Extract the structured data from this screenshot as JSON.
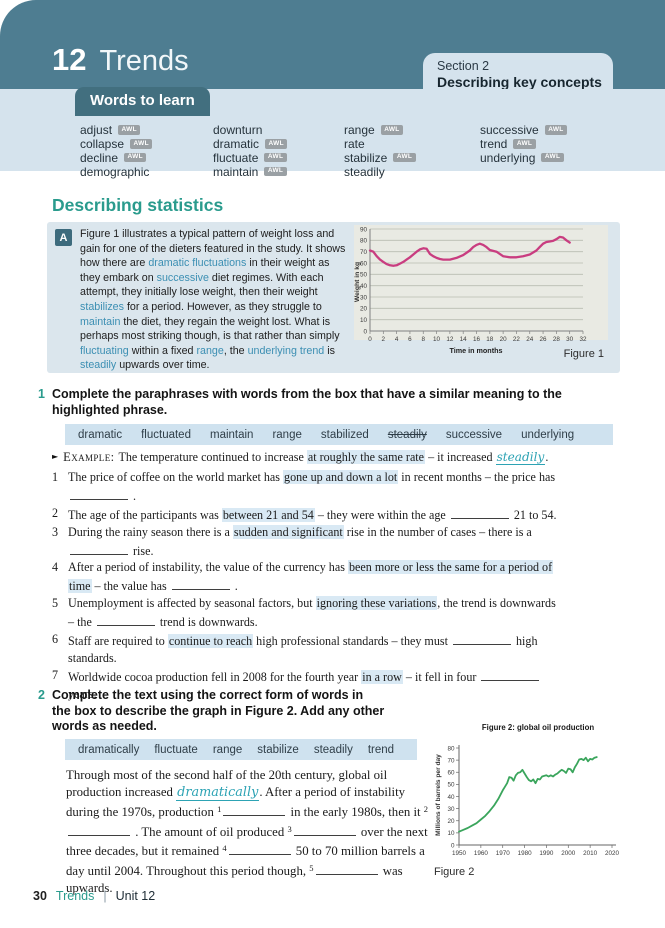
{
  "header": {
    "unit_number": "12",
    "unit_title": "Trends",
    "section_label": "Section 2",
    "section_title": "Describing key concepts"
  },
  "words_to_learn": {
    "title": "Words to learn",
    "awl_badge_text": "AWL",
    "columns": [
      [
        {
          "word": "adjust",
          "awl": true
        },
        {
          "word": "collapse",
          "awl": true
        },
        {
          "word": "decline",
          "awl": true
        },
        {
          "word": "demographic",
          "awl": false
        }
      ],
      [
        {
          "word": "downturn",
          "awl": false
        },
        {
          "word": "dramatic",
          "awl": true
        },
        {
          "word": "fluctuate",
          "awl": true
        },
        {
          "word": "maintain",
          "awl": true
        }
      ],
      [
        {
          "word": "range",
          "awl": true
        },
        {
          "word": "rate",
          "awl": false
        },
        {
          "word": "stabilize",
          "awl": true
        },
        {
          "word": "steadily",
          "awl": false
        }
      ],
      [
        {
          "word": "successive",
          "awl": true
        },
        {
          "word": "trend",
          "awl": true
        },
        {
          "word": "underlying",
          "awl": true
        }
      ]
    ]
  },
  "section_heading": "Describing statistics",
  "box_a": {
    "label": "A",
    "paragraph": [
      {
        "t": "Figure 1 illustrates a typical pattern of weight loss and gain for one of the dieters featured in the study. It shows how there are "
      },
      {
        "k": "dramatic fluctuations"
      },
      {
        "t": " in their weight as they embark on "
      },
      {
        "k": "successive"
      },
      {
        "t": " diet regimes. With each attempt, they initially lose weight, then their weight "
      },
      {
        "k": "stabilizes"
      },
      {
        "t": " for a period. However, as they struggle to "
      },
      {
        "k": "maintain"
      },
      {
        "t": " the diet, they regain the weight lost. What is perhaps most striking though, is that rather than simply "
      },
      {
        "k": "fluctuating"
      },
      {
        "t": " within a fixed "
      },
      {
        "k": "range"
      },
      {
        "t": ", the "
      },
      {
        "k": "underlying trend"
      },
      {
        "t": " is "
      },
      {
        "k": "steadily"
      },
      {
        "t": " upwards over time."
      }
    ]
  },
  "exercise1": {
    "number": "1",
    "heading_lines": [
      "Complete the paraphrases with words from the box that have a similar meaning to the",
      "highlighted phrase."
    ],
    "word_box": [
      {
        "word": "dramatic"
      },
      {
        "word": "fluctuated"
      },
      {
        "word": "maintain"
      },
      {
        "word": "range"
      },
      {
        "word": "stabilized"
      },
      {
        "word": "steadily",
        "struck": true
      },
      {
        "word": "successive"
      },
      {
        "word": "underlying"
      }
    ],
    "example": {
      "marker": "►",
      "label": "Example:",
      "segments": [
        {
          "t": "The temperature continued to increase "
        },
        {
          "h": "at roughly the same rate"
        },
        {
          "t": " – it increased "
        },
        {
          "hw": "steadily"
        },
        {
          "t": "."
        }
      ]
    },
    "items": [
      {
        "num": "1",
        "segments": [
          {
            "t": "The price of coffee on the world market has "
          },
          {
            "h": "gone up and down a lot"
          },
          {
            "t": " in recent months – the price has"
          },
          {
            "br": true
          },
          {
            "b": 58
          },
          {
            "t": " ."
          }
        ]
      },
      {
        "num": "2",
        "segments": [
          {
            "t": "The age of the participants was "
          },
          {
            "h": "between 21 and 54"
          },
          {
            "t": " – they were within the age "
          },
          {
            "b": 58
          },
          {
            "t": " 21 to 54."
          }
        ]
      },
      {
        "num": "3",
        "segments": [
          {
            "t": "During the rainy season there is a "
          },
          {
            "h": "sudden and significant"
          },
          {
            "t": " rise in the number of cases – there is a"
          },
          {
            "br": true
          },
          {
            "b": 58
          },
          {
            "t": " rise."
          }
        ]
      },
      {
        "num": "4",
        "segments": [
          {
            "t": "After a period of instability, the value of the currency has "
          },
          {
            "h": "been more or less the same for a period of"
          },
          {
            "br": true
          },
          {
            "h": "time"
          },
          {
            "t": " – the value has "
          },
          {
            "b": 58
          },
          {
            "t": " ."
          }
        ]
      },
      {
        "num": "5",
        "segments": [
          {
            "t": "Unemployment is affected by seasonal factors, but "
          },
          {
            "h": "ignoring these variations"
          },
          {
            "t": ", the trend is downwards"
          },
          {
            "br": true
          },
          {
            "t": "– the "
          },
          {
            "b": 58
          },
          {
            "t": " trend is downwards."
          }
        ]
      },
      {
        "num": "6",
        "segments": [
          {
            "t": "Staff are required to "
          },
          {
            "h": "continue to reach"
          },
          {
            "t": " high professional standards – they must "
          },
          {
            "b": 58
          },
          {
            "t": " high"
          },
          {
            "br": true
          },
          {
            "t": "standards."
          }
        ]
      },
      {
        "num": "7",
        "segments": [
          {
            "t": "Worldwide cocoa production fell in 2008 for the fourth year "
          },
          {
            "h": "in a row"
          },
          {
            "t": " – it fell in four "
          },
          {
            "b": 58
          },
          {
            "br": true
          },
          {
            "t": "years."
          }
        ]
      }
    ]
  },
  "exercise2": {
    "number": "2",
    "heading_lines": [
      "Complete the text using the correct form of words in",
      "the box to describe the graph in Figure 2. Add any other",
      "words as needed."
    ],
    "word_box": [
      {
        "word": "dramatically"
      },
      {
        "word": "fluctuate"
      },
      {
        "word": "range"
      },
      {
        "word": "stabilize"
      },
      {
        "word": "steadily"
      },
      {
        "word": "trend"
      }
    ],
    "paragraph": [
      {
        "t": "Through most of the second half of the 20th century, global oil production increased "
      },
      {
        "hw": "dramatically"
      },
      {
        "t": ". After a period of instability during the 1970s, production "
      },
      {
        "s": "1"
      },
      {
        "b": 62
      },
      {
        "t": " in the early 1980s, then it "
      },
      {
        "s": "2"
      },
      {
        "b": 62
      },
      {
        "t": " . The amount of oil produced "
      },
      {
        "s": "3"
      },
      {
        "b": 62
      },
      {
        "t": " over the next three decades, but it remained "
      },
      {
        "s": "4"
      },
      {
        "b": 62
      },
      {
        "t": " 50 to 70 million barrels a day until 2004. Throughout this period though, "
      },
      {
        "s": "5"
      },
      {
        "b": 62
      },
      {
        "t": " was upwards."
      }
    ]
  },
  "chart_data": [
    {
      "type": "line",
      "title": "",
      "figure_label": "Figure 1",
      "xlabel": "Time in months",
      "ylabel": "Weight in kg",
      "xlim": [
        0,
        32
      ],
      "ylim": [
        0,
        90
      ],
      "xtick_step": 2,
      "ytick_step": 10,
      "grid": "horizontal",
      "line_color": "#c93d80",
      "series": [
        {
          "name": "dieter weight (kg)",
          "points": [
            [
              0,
              71
            ],
            [
              0.5,
              70
            ],
            [
              1,
              66
            ],
            [
              1.5,
              63
            ],
            [
              2,
              61
            ],
            [
              2.5,
              59
            ],
            [
              3,
              58
            ],
            [
              3.5,
              57.5
            ],
            [
              4,
              58
            ],
            [
              4.5,
              59.5
            ],
            [
              5,
              61
            ],
            [
              5.5,
              63
            ],
            [
              6,
              65
            ],
            [
              6.5,
              67.5
            ],
            [
              7,
              70
            ],
            [
              7.5,
              72
            ],
            [
              8,
              73
            ],
            [
              8.5,
              72.5
            ],
            [
              9,
              68
            ],
            [
              9.5,
              66
            ],
            [
              10,
              64.5
            ],
            [
              10.5,
              63.5
            ],
            [
              11,
              63
            ],
            [
              12,
              63
            ],
            [
              13,
              64.5
            ],
            [
              14,
              67
            ],
            [
              15,
              71
            ],
            [
              15.5,
              74
            ],
            [
              16,
              76
            ],
            [
              16.5,
              77
            ],
            [
              17,
              76
            ],
            [
              17.5,
              74
            ],
            [
              18,
              71.5
            ],
            [
              19,
              70
            ],
            [
              19.5,
              68
            ],
            [
              20,
              66
            ],
            [
              20.5,
              65.5
            ],
            [
              21,
              65
            ],
            [
              22,
              65
            ],
            [
              23,
              66
            ],
            [
              24,
              67.5
            ],
            [
              25,
              71
            ],
            [
              25.5,
              74
            ],
            [
              26,
              77
            ],
            [
              26.5,
              78.5
            ],
            [
              27,
              79
            ],
            [
              27.5,
              79.5
            ],
            [
              28,
              81
            ],
            [
              28.5,
              83
            ],
            [
              29,
              82.5
            ],
            [
              29.5,
              80
            ],
            [
              30,
              78
            ]
          ]
        }
      ]
    },
    {
      "type": "line",
      "title": "Figure 2: global oil production",
      "figure_label": "Figure 2",
      "xlabel": "",
      "ylabel": "Millions of barrels per day",
      "xlim": [
        1950,
        2020
      ],
      "ylim": [
        0,
        80
      ],
      "xtick_step": 10,
      "ytick_step": 10,
      "grid": "none",
      "line_color": "#3aa55c",
      "series": [
        {
          "name": "global oil production (million barrels per day)",
          "points": [
            [
              1950,
              11
            ],
            [
              1952,
              12.5
            ],
            [
              1954,
              14
            ],
            [
              1956,
              16
            ],
            [
              1958,
              18
            ],
            [
              1960,
              21
            ],
            [
              1962,
              24
            ],
            [
              1964,
              28
            ],
            [
              1966,
              32.5
            ],
            [
              1968,
              38
            ],
            [
              1970,
              45
            ],
            [
              1971,
              48
            ],
            [
              1972,
              51
            ],
            [
              1973,
              56
            ],
            [
              1974,
              55.5
            ],
            [
              1975,
              53
            ],
            [
              1976,
              57.5
            ],
            [
              1977,
              59.5
            ],
            [
              1978,
              60
            ],
            [
              1979,
              62
            ],
            [
              1980,
              59
            ],
            [
              1981,
              56
            ],
            [
              1982,
              53.5
            ],
            [
              1983,
              52.5
            ],
            [
              1984,
              54
            ],
            [
              1985,
              51
            ],
            [
              1986,
              54.5
            ],
            [
              1987,
              54
            ],
            [
              1988,
              56.5
            ],
            [
              1989,
              57
            ],
            [
              1990,
              57.5
            ],
            [
              1991,
              56.5
            ],
            [
              1992,
              57.5
            ],
            [
              1993,
              56.5
            ],
            [
              1994,
              58
            ],
            [
              1995,
              59
            ],
            [
              1996,
              60.5
            ],
            [
              1997,
              62
            ],
            [
              1998,
              61
            ],
            [
              1999,
              59.5
            ],
            [
              2000,
              63
            ],
            [
              2001,
              62.5
            ],
            [
              2002,
              60
            ],
            [
              2003,
              64
            ],
            [
              2004,
              67
            ],
            [
              2005,
              70.5
            ],
            [
              2006,
              71
            ],
            [
              2007,
              70
            ],
            [
              2008,
              72
            ],
            [
              2009,
              69
            ],
            [
              2010,
              71
            ],
            [
              2011,
              70.5
            ],
            [
              2012,
              72
            ],
            [
              2013,
              72.5
            ]
          ]
        }
      ]
    }
  ],
  "footer": {
    "page_number": "30",
    "book_title": "Trends",
    "separator": "|",
    "unit_label": "Unit 12"
  },
  "colors": {
    "header_band": "#4e7d91",
    "panel_blue": "#d5e3ed",
    "tab_teal": "#426f7f",
    "accent_teal": "#2a9b8d",
    "keyword_blue": "#3c8fb3",
    "highlight": "#d9e9f4",
    "word_box": "#cfe2ef",
    "handwriting": "#2da3b4",
    "awl_badge": "#9aa0a4",
    "box_a_bg": "#dbe6ed",
    "chart_bg": "#e9eae3",
    "fig1_line": "#c93d80",
    "fig2_line": "#3aa55c"
  }
}
